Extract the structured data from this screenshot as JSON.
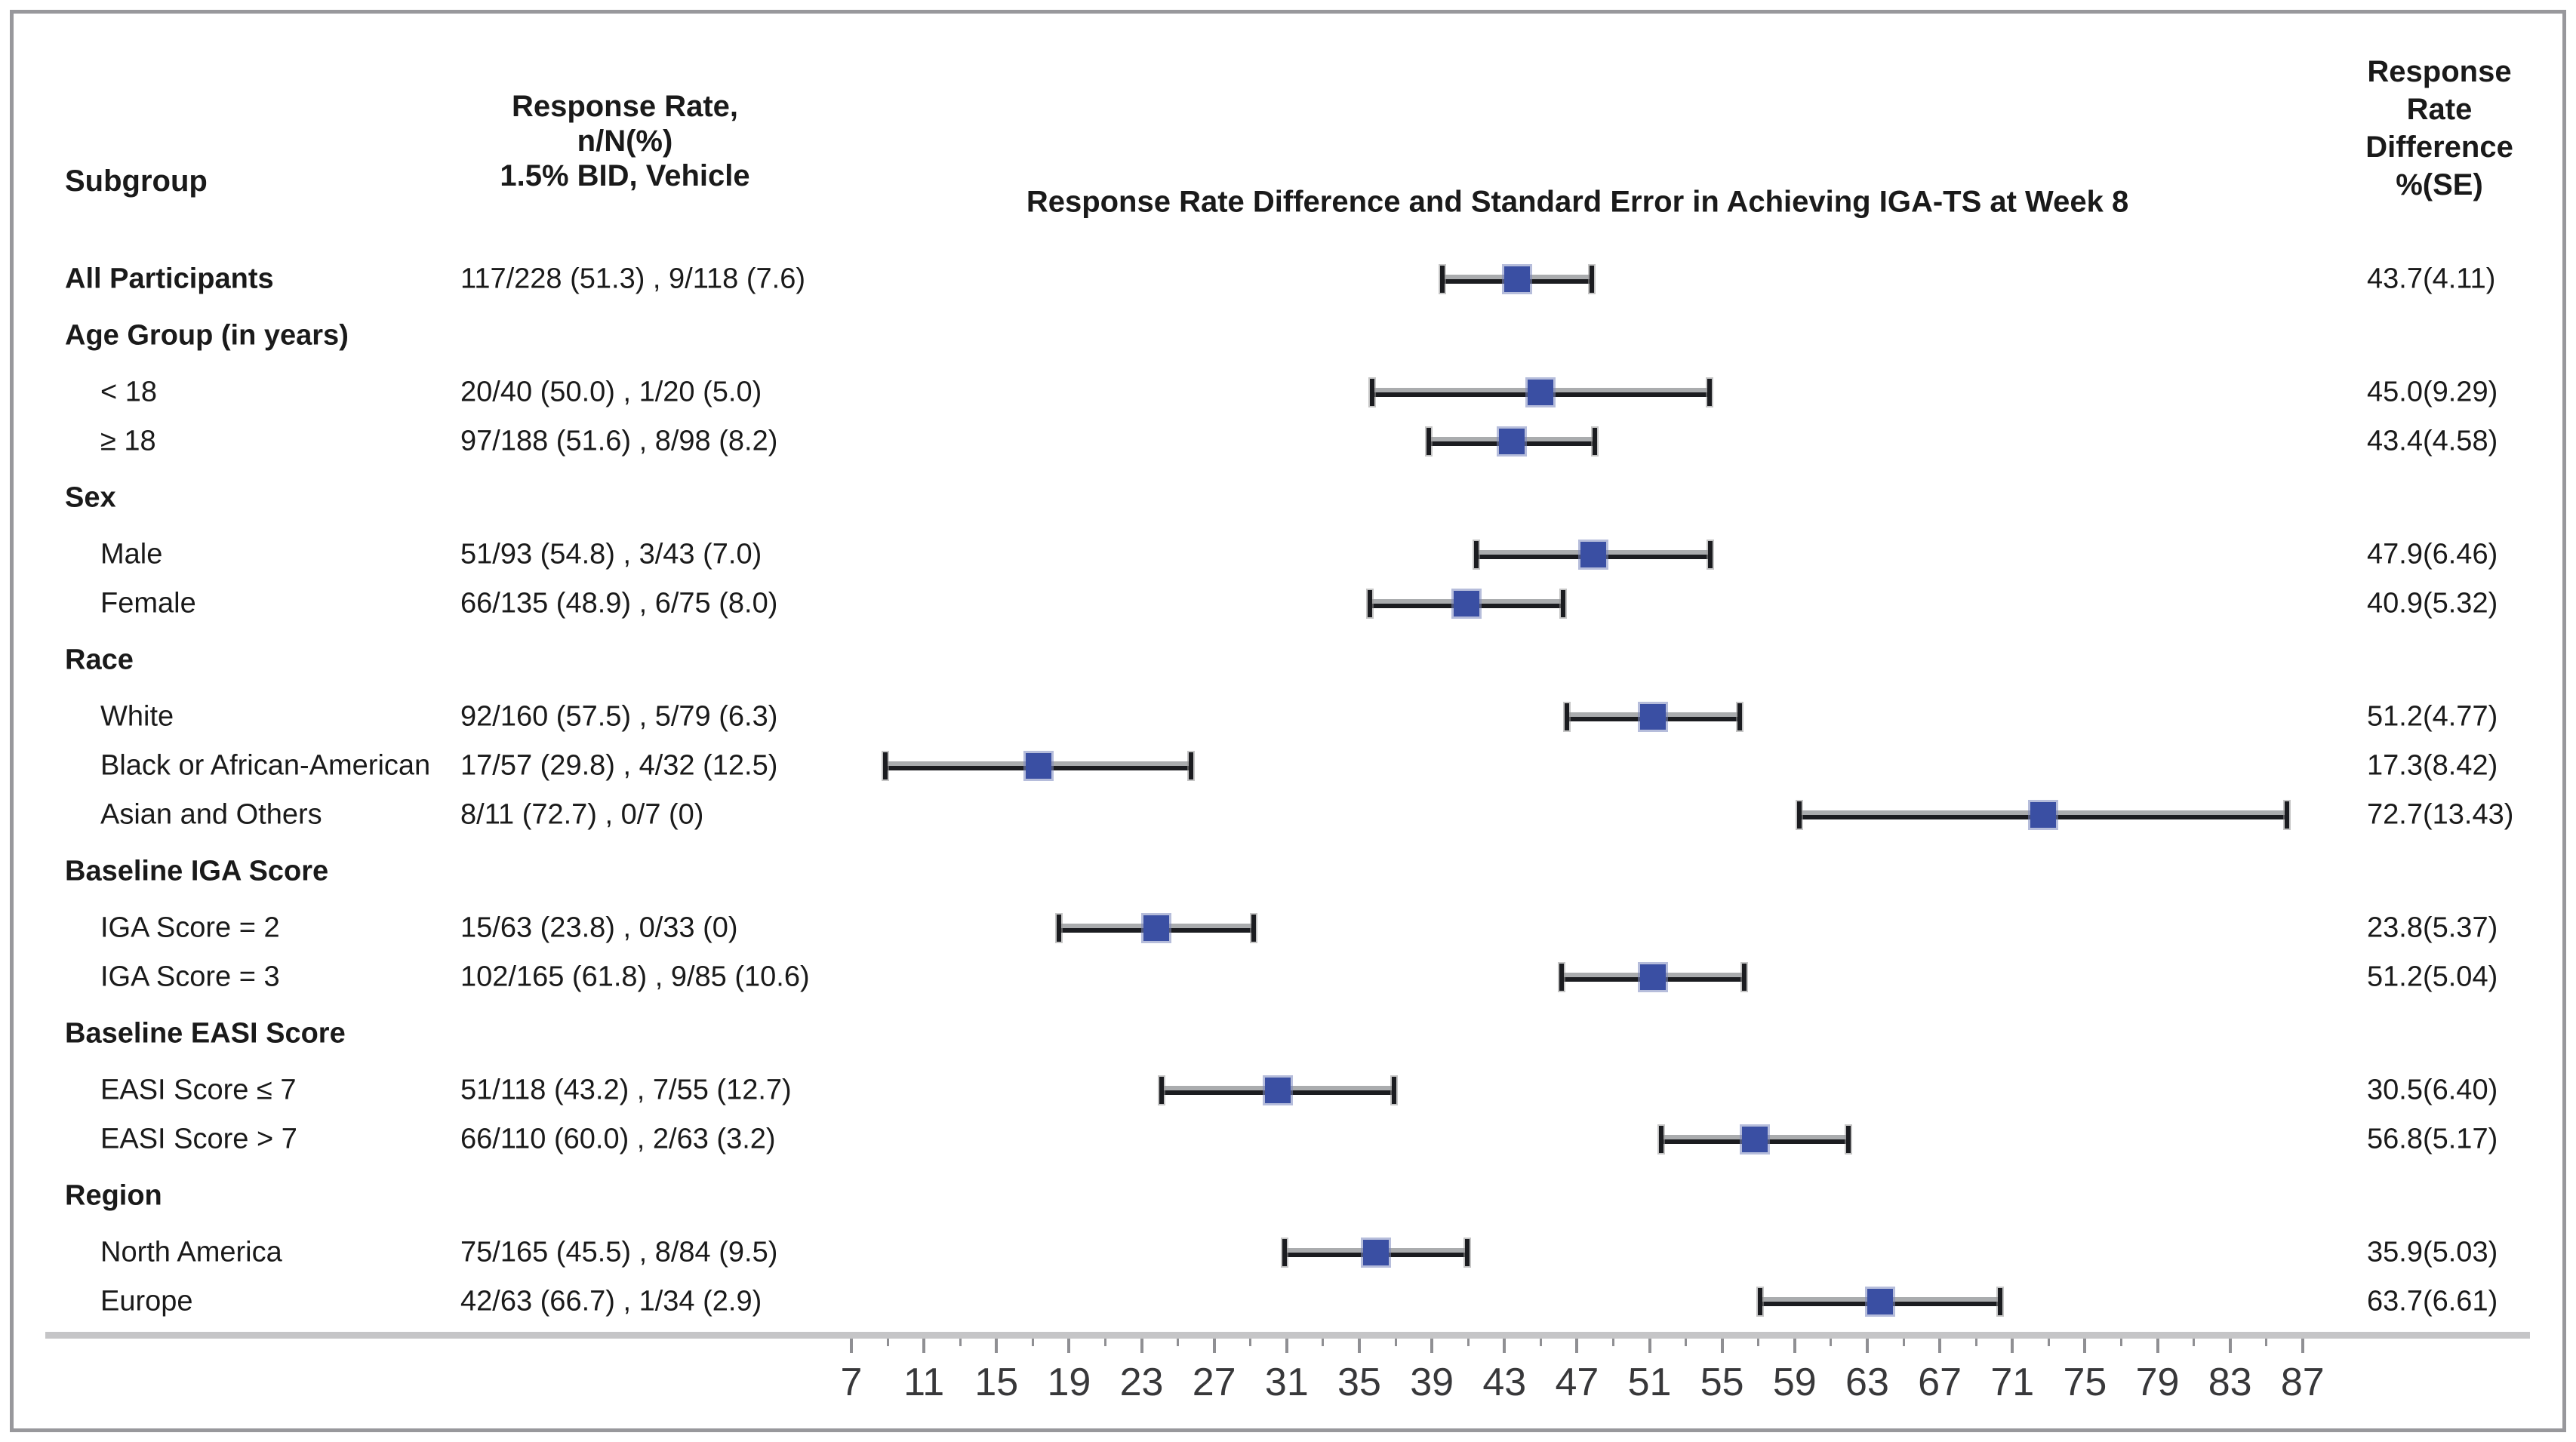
{
  "chart_data": {
    "type": "forest",
    "title": "Response Rate Difference and Standard Error in Achieving IGA-TS at Week 8",
    "column_headers": {
      "subgroup": "Subgroup",
      "response_rate": [
        "Response Rate,",
        "n/N(%)",
        "1.5% BID, Vehicle"
      ],
      "diff": [
        "Response",
        "Rate",
        "Difference",
        "%(SE)"
      ]
    },
    "error_bar_meaning": "estimate ± standard error",
    "x_axis": {
      "min": 7,
      "max": 87,
      "major_tick_step": 4,
      "minor_tick_step": 2,
      "tick_labels": [
        7,
        11,
        15,
        19,
        23,
        27,
        31,
        35,
        39,
        43,
        47,
        51,
        55,
        59,
        63,
        67,
        71,
        75,
        79,
        83,
        87
      ]
    },
    "rows": [
      {
        "label": "All Participants",
        "bold": true,
        "group": false,
        "indent": false,
        "response_rate": "117/228 (51.3) , 9/118 (7.6)",
        "diff": 43.7,
        "se": 4.11,
        "diff_label": "43.7(4.11)"
      },
      {
        "label": "Age Group (in years)",
        "bold": true,
        "group": true
      },
      {
        "label": "< 18",
        "indent": true,
        "response_rate": "20/40 (50.0) , 1/20 (5.0)",
        "diff": 45.0,
        "se": 9.29,
        "diff_label": "45.0(9.29)"
      },
      {
        "label": "≥ 18",
        "indent": true,
        "response_rate": "97/188 (51.6) , 8/98 (8.2)",
        "diff": 43.4,
        "se": 4.58,
        "diff_label": "43.4(4.58)"
      },
      {
        "label": "Sex",
        "bold": true,
        "group": true
      },
      {
        "label": "Male",
        "indent": true,
        "response_rate": "51/93 (54.8) , 3/43 (7.0)",
        "diff": 47.9,
        "se": 6.46,
        "diff_label": "47.9(6.46)"
      },
      {
        "label": "Female",
        "indent": true,
        "response_rate": "66/135 (48.9) , 6/75 (8.0)",
        "diff": 40.9,
        "se": 5.32,
        "diff_label": "40.9(5.32)"
      },
      {
        "label": "Race",
        "bold": true,
        "group": true
      },
      {
        "label": "White",
        "indent": true,
        "response_rate": "92/160 (57.5) , 5/79 (6.3)",
        "diff": 51.2,
        "se": 4.77,
        "diff_label": "51.2(4.77)"
      },
      {
        "label": "Black or African-American",
        "indent": true,
        "response_rate": "17/57 (29.8) , 4/32 (12.5)",
        "diff": 17.3,
        "se": 8.42,
        "diff_label": "17.3(8.42)"
      },
      {
        "label": "Asian and Others",
        "indent": true,
        "response_rate": "8/11 (72.7) , 0/7 (0)",
        "diff": 72.7,
        "se": 13.43,
        "diff_label": "72.7(13.43)"
      },
      {
        "label": "Baseline IGA Score",
        "bold": true,
        "group": true
      },
      {
        "label": "IGA Score = 2",
        "indent": true,
        "response_rate": "15/63 (23.8) , 0/33 (0)",
        "diff": 23.8,
        "se": 5.37,
        "diff_label": "23.8(5.37)"
      },
      {
        "label": "IGA Score = 3",
        "indent": true,
        "response_rate": "102/165 (61.8) , 9/85 (10.6)",
        "diff": 51.2,
        "se": 5.04,
        "diff_label": "51.2(5.04)"
      },
      {
        "label": "Baseline EASI Score",
        "bold": true,
        "group": true
      },
      {
        "label": "EASI Score ≤ 7",
        "indent": true,
        "response_rate": "51/118 (43.2) , 7/55 (12.7)",
        "diff": 30.5,
        "se": 6.4,
        "diff_label": "30.5(6.40)"
      },
      {
        "label": "EASI Score > 7",
        "indent": true,
        "response_rate": "66/110 (60.0) , 2/63 (3.2)",
        "diff": 56.8,
        "se": 5.17,
        "diff_label": "56.8(5.17)"
      },
      {
        "label": "Region",
        "bold": true,
        "group": true
      },
      {
        "label": "North America",
        "indent": true,
        "response_rate": "75/165 (45.5) , 8/84 (9.5)",
        "diff": 35.9,
        "se": 5.03,
        "diff_label": "35.9(5.03)"
      },
      {
        "label": "Europe",
        "indent": true,
        "response_rate": "42/63 (66.7) , 1/34 (2.9)",
        "diff": 63.7,
        "se": 6.61,
        "diff_label": "63.7(6.61)"
      }
    ]
  },
  "colors": {
    "marker": "#3a4fa3",
    "error_dark": "#1b1c20",
    "error_light": "#aaacae",
    "axis_rule": "#c5c5c7",
    "tick": "#8f8f93",
    "axis_label": "#38383a",
    "border": "#98989c",
    "text": "#1a1a1a"
  }
}
